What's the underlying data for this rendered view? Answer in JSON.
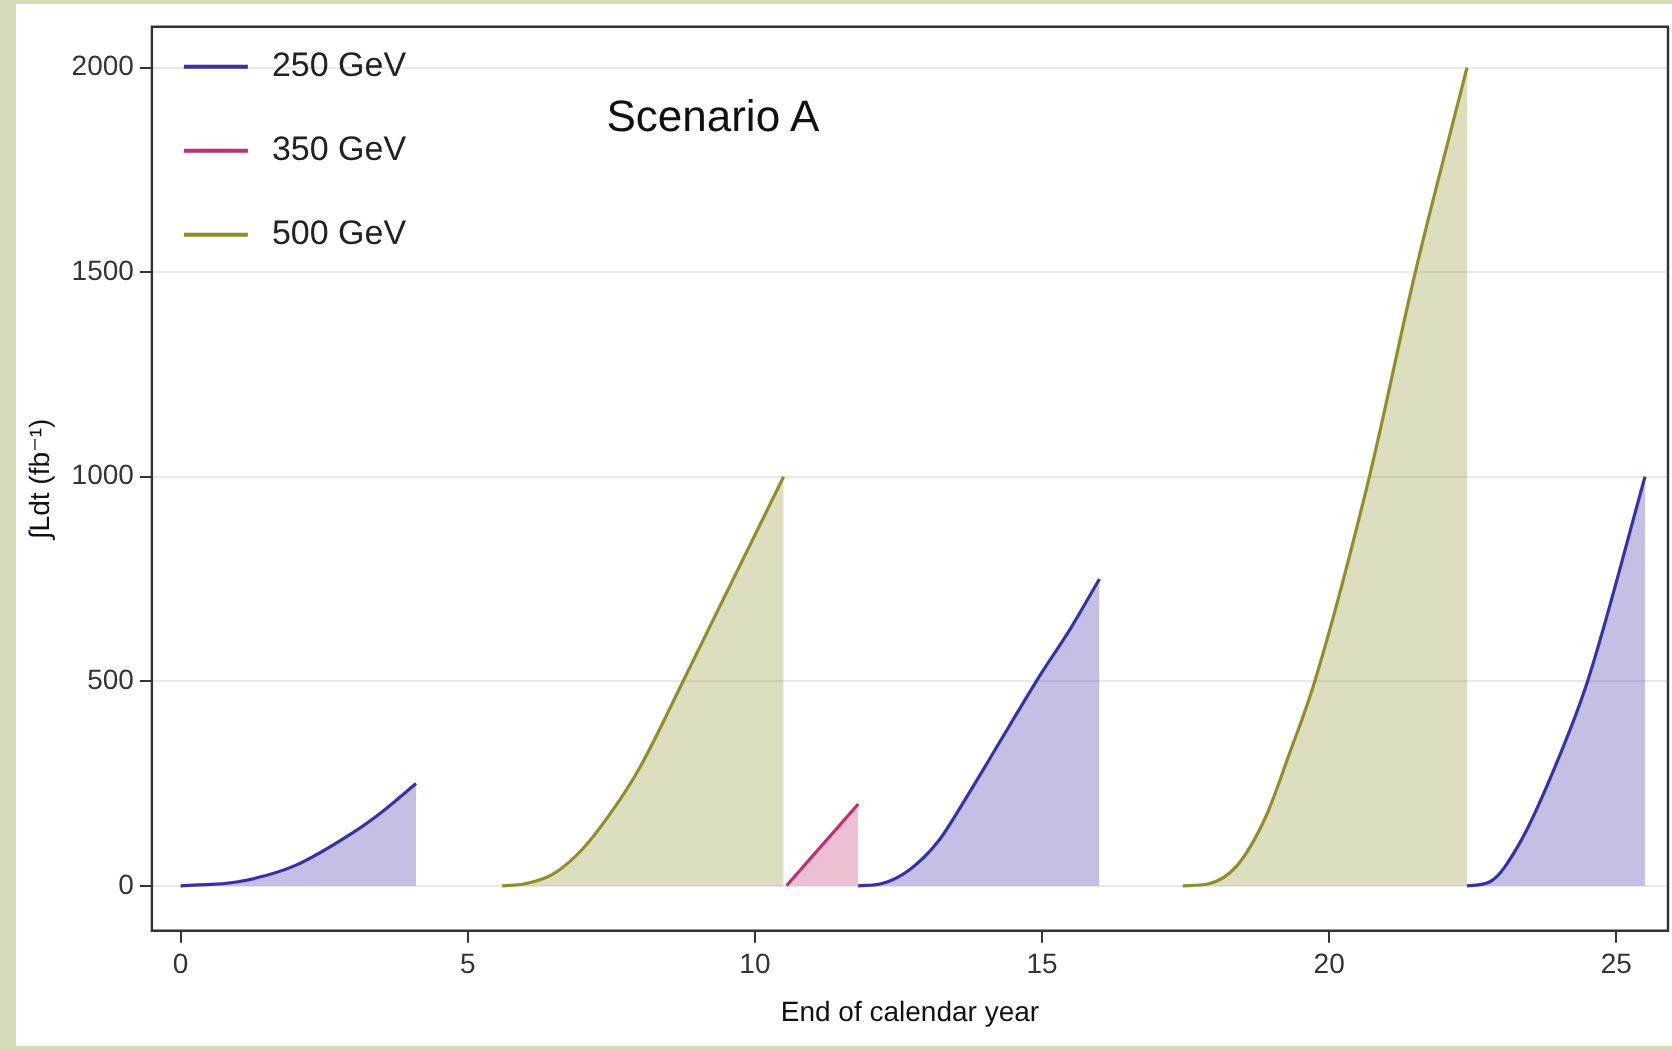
{
  "chart_data": {
    "type": "area",
    "title": "Scenario A",
    "xlabel": "End of calendar year",
    "ylabel": "∫Ldt (fb⁻¹)",
    "xlim": [
      -0.5,
      25.9
    ],
    "ylim": [
      -110,
      2100
    ],
    "xticks": [
      0,
      5,
      10,
      15,
      20,
      25
    ],
    "yticks": [
      0,
      500,
      1000,
      1500,
      2000
    ],
    "grid": "y",
    "legend": "top left",
    "marker": "none",
    "line_style": "solid",
    "series": [
      {
        "name": "250 GeV",
        "color": "#3b2fa8",
        "x": [
          0,
          1,
          2,
          3,
          3.5,
          4.1,
          8,
          11.8,
          12.2,
          12.7,
          13.2,
          13.7,
          14.3,
          14.9,
          15.5,
          16,
          19,
          22.4,
          22.8,
          23.3,
          23.9,
          24.5,
          25.5
        ],
        "values": [
          0,
          10,
          50,
          130,
          180,
          250,
          null,
          0,
          5,
          40,
          110,
          220,
          360,
          500,
          630,
          750,
          null,
          0,
          10,
          100,
          280,
          500,
          1000
        ]
      },
      {
        "name": "350 GeV",
        "color": "#c0306a",
        "x": [
          10.55,
          11.8
        ],
        "values": [
          0,
          200
        ]
      },
      {
        "name": "500 GeV",
        "color": "#8f8f2a",
        "x": [
          5.6,
          6,
          6.5,
          7,
          7.5,
          8,
          8.75,
          9.5,
          10.5,
          14,
          17.45,
          17.9,
          18.4,
          18.9,
          19.3,
          19.75,
          20.7,
          21.5,
          22.4
        ],
        "values": [
          0,
          5,
          30,
          90,
          180,
          290,
          500,
          715,
          1000,
          null,
          0,
          5,
          50,
          170,
          320,
          500,
          1000,
          1500,
          2000
        ]
      }
    ]
  }
}
